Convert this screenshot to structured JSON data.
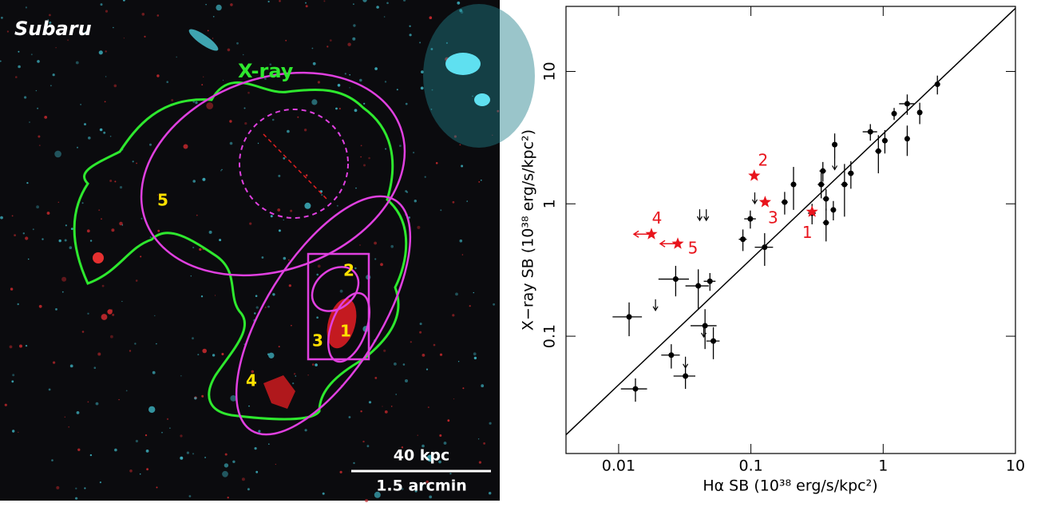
{
  "image_panel": {
    "title": "Subaru",
    "contour_label": "X-ray",
    "region_labels": [
      "5",
      "2",
      "3",
      "1",
      "4"
    ],
    "scalebar_top": "40 kpc",
    "scalebar_bottom": "1.5 arcmin"
  },
  "chart_data": {
    "type": "scatter",
    "xlabel": "Hα SB (10³⁸ erg/s/kpc²)",
    "ylabel": "X−ray SB (10³⁸ erg/s/kpc²)",
    "xscale": "log",
    "yscale": "log",
    "xlim": [
      0.004,
      10
    ],
    "ylim": [
      0.013,
      31
    ],
    "xticks": [
      0.01,
      0.1,
      1,
      10
    ],
    "yticks": [
      0.1,
      1,
      10
    ],
    "fit_line": {
      "color": "#000000",
      "x": [
        0.004,
        10
      ],
      "y": [
        0.018,
        30
      ]
    },
    "series": [
      {
        "color": "#000000",
        "marker": "circle",
        "x": [
          2.57,
          1.89,
          1.52,
          1.52,
          1.21,
          1.03,
          0.92,
          0.8,
          0.57,
          0.51,
          0.43,
          0.42,
          0.37,
          0.35,
          0.34,
          0.37,
          0.29,
          0.21,
          0.18,
          0.099,
          0.087,
          0.127,
          0.049,
          0.04,
          0.027,
          0.045,
          0.052,
          0.025,
          0.032,
          0.012,
          0.0134
        ],
        "xerr": [
          0.1,
          0.08,
          0.2,
          0.05,
          0.05,
          0.05,
          0.05,
          0.1,
          0.03,
          0.03,
          0.02,
          0.02,
          0.02,
          0.02,
          0.02,
          0.02,
          0.02,
          0.01,
          0.01,
          0.01,
          0.006,
          0.02,
          0.005,
          0.008,
          0.007,
          0.01,
          0.006,
          0.004,
          0.006,
          0.003,
          0.003
        ],
        "y": [
          8.0,
          4.9,
          5.7,
          3.1,
          4.8,
          3.0,
          2.5,
          3.5,
          1.7,
          1.4,
          2.8,
          0.9,
          0.72,
          1.77,
          1.4,
          1.09,
          0.85,
          1.4,
          1.03,
          0.77,
          0.54,
          0.47,
          0.26,
          0.24,
          0.27,
          0.12,
          0.092,
          0.072,
          0.05,
          0.14,
          0.04
        ],
        "yerr": [
          1.3,
          0.9,
          1.0,
          0.8,
          0.5,
          0.6,
          0.8,
          0.5,
          0.4,
          0.6,
          0.6,
          0.15,
          0.2,
          0.3,
          0.3,
          0.2,
          0.15,
          0.5,
          0.2,
          0.12,
          0.1,
          0.13,
          0.04,
          0.08,
          0.07,
          0.04,
          0.025,
          0.015,
          0.01,
          0.04,
          0.008
        ]
      },
      {
        "color": "#000000",
        "marker": "upper-limit",
        "x": [
          0.107,
          0.019,
          0.041,
          0.046,
          0.044,
          0.032,
          0.43
        ],
        "y": [
          1.22,
          0.19,
          0.91,
          0.91,
          0.12,
          0.07,
          2.2
        ]
      },
      {
        "color": "#e8141c",
        "marker": "star",
        "x": [
          0.29,
          0.106,
          0.128,
          0.0177,
          0.028
        ],
        "y": [
          0.87,
          1.63,
          1.03,
          0.59,
          0.5
        ],
        "x_upper_limit": [
          false,
          false,
          false,
          true,
          true
        ],
        "labels": [
          "1",
          "2",
          "3",
          "4",
          "5"
        ]
      }
    ]
  }
}
